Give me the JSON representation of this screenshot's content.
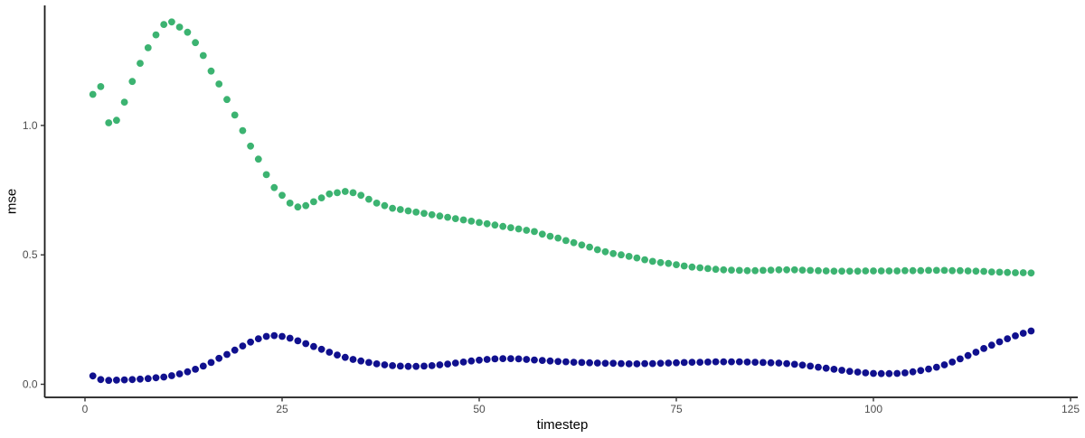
{
  "chart_data": {
    "type": "scatter",
    "title": "",
    "xlabel": "timestep",
    "ylabel": "mse",
    "xlim": [
      -5,
      126
    ],
    "ylim": [
      -0.05,
      1.47
    ],
    "grid": false,
    "legend": "none",
    "background_color": "#ffffff",
    "axis_line_color": "#1a1a1a",
    "tick_label_color": "#4d4d4d",
    "x_axis": {
      "ticks": [
        {
          "v": 0,
          "label": "0"
        },
        {
          "v": 25,
          "label": "25"
        },
        {
          "v": 50,
          "label": "50"
        },
        {
          "v": 75,
          "label": "75"
        },
        {
          "v": 100,
          "label": "100"
        },
        {
          "v": 125,
          "label": "125"
        }
      ]
    },
    "y_axis": {
      "ticks": [
        {
          "v": 0,
          "label": "0.0"
        },
        {
          "v": 0.5,
          "label": "0.5"
        },
        {
          "v": 1,
          "label": "1.0"
        }
      ]
    },
    "x": [
      1,
      2,
      3,
      4,
      5,
      6,
      7,
      8,
      9,
      10,
      11,
      12,
      13,
      14,
      15,
      16,
      17,
      18,
      19,
      20,
      21,
      22,
      23,
      24,
      25,
      26,
      27,
      28,
      29,
      30,
      31,
      32,
      33,
      34,
      35,
      36,
      37,
      38,
      39,
      40,
      41,
      42,
      43,
      44,
      45,
      46,
      47,
      48,
      49,
      50,
      51,
      52,
      53,
      54,
      55,
      56,
      57,
      58,
      59,
      60,
      61,
      62,
      63,
      64,
      65,
      66,
      67,
      68,
      69,
      70,
      71,
      72,
      73,
      74,
      75,
      76,
      77,
      78,
      79,
      80,
      81,
      82,
      83,
      84,
      85,
      86,
      87,
      88,
      89,
      90,
      91,
      92,
      93,
      94,
      95,
      96,
      97,
      98,
      99,
      100,
      101,
      102,
      103,
      104,
      105,
      106,
      107,
      108,
      109,
      110,
      111,
      112,
      113,
      114,
      115,
      116,
      117,
      118,
      119,
      120
    ],
    "series": [
      {
        "name": "green",
        "color": "#3cb371",
        "values": [
          1.12,
          1.15,
          1.01,
          1.02,
          1.09,
          1.17,
          1.24,
          1.3,
          1.35,
          1.39,
          1.4,
          1.38,
          1.36,
          1.32,
          1.27,
          1.21,
          1.16,
          1.1,
          1.04,
          0.98,
          0.92,
          0.87,
          0.81,
          0.76,
          0.73,
          0.7,
          0.685,
          0.69,
          0.705,
          0.72,
          0.735,
          0.74,
          0.745,
          0.74,
          0.73,
          0.715,
          0.7,
          0.69,
          0.68,
          0.675,
          0.67,
          0.665,
          0.66,
          0.655,
          0.65,
          0.645,
          0.64,
          0.635,
          0.63,
          0.625,
          0.62,
          0.615,
          0.61,
          0.605,
          0.6,
          0.595,
          0.59,
          0.58,
          0.572,
          0.565,
          0.555,
          0.547,
          0.538,
          0.53,
          0.52,
          0.512,
          0.505,
          0.5,
          0.494,
          0.488,
          0.481,
          0.475,
          0.47,
          0.467,
          0.462,
          0.457,
          0.453,
          0.45,
          0.447,
          0.444,
          0.442,
          0.441,
          0.44,
          0.439,
          0.439,
          0.44,
          0.441,
          0.442,
          0.442,
          0.442,
          0.441,
          0.44,
          0.439,
          0.438,
          0.437,
          0.437,
          0.437,
          0.437,
          0.438,
          0.438,
          0.438,
          0.438,
          0.438,
          0.439,
          0.439,
          0.439,
          0.44,
          0.44,
          0.44,
          0.439,
          0.439,
          0.438,
          0.437,
          0.436,
          0.434,
          0.433,
          0.432,
          0.431,
          0.431,
          0.43
        ]
      },
      {
        "name": "navy",
        "color": "#10108e",
        "values": [
          0.032,
          0.018,
          0.015,
          0.016,
          0.017,
          0.018,
          0.02,
          0.022,
          0.025,
          0.028,
          0.033,
          0.04,
          0.048,
          0.058,
          0.07,
          0.084,
          0.1,
          0.115,
          0.132,
          0.148,
          0.163,
          0.176,
          0.185,
          0.188,
          0.185,
          0.178,
          0.168,
          0.157,
          0.146,
          0.135,
          0.124,
          0.113,
          0.104,
          0.096,
          0.09,
          0.084,
          0.079,
          0.075,
          0.072,
          0.07,
          0.069,
          0.069,
          0.07,
          0.072,
          0.075,
          0.078,
          0.082,
          0.086,
          0.09,
          0.093,
          0.096,
          0.098,
          0.099,
          0.099,
          0.098,
          0.096,
          0.094,
          0.092,
          0.09,
          0.088,
          0.087,
          0.085,
          0.084,
          0.083,
          0.082,
          0.081,
          0.081,
          0.08,
          0.079,
          0.079,
          0.08,
          0.08,
          0.081,
          0.082,
          0.083,
          0.084,
          0.085,
          0.085,
          0.086,
          0.087,
          0.087,
          0.087,
          0.087,
          0.086,
          0.085,
          0.084,
          0.083,
          0.082,
          0.08,
          0.077,
          0.074,
          0.07,
          0.066,
          0.062,
          0.058,
          0.054,
          0.05,
          0.047,
          0.044,
          0.042,
          0.041,
          0.041,
          0.042,
          0.044,
          0.048,
          0.053,
          0.059,
          0.066,
          0.075,
          0.086,
          0.098,
          0.111,
          0.124,
          0.138,
          0.151,
          0.164,
          0.176,
          0.187,
          0.197,
          0.206
        ]
      }
    ]
  }
}
